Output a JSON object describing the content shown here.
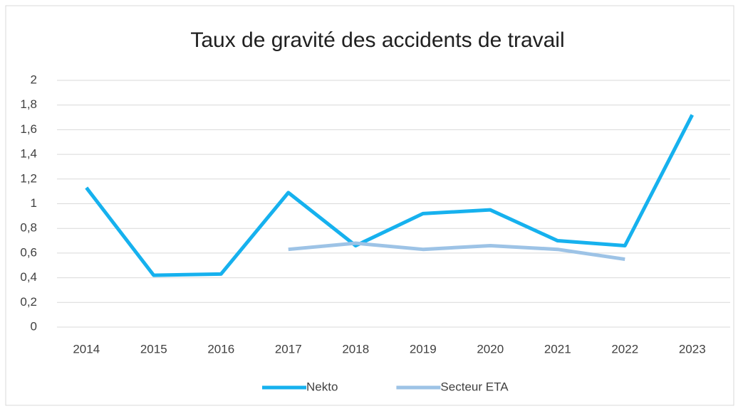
{
  "chart_data": {
    "type": "line",
    "title": "Taux de gravité des accidents de travail",
    "categories": [
      "2014",
      "2015",
      "2016",
      "2017",
      "2018",
      "2019",
      "2020",
      "2021",
      "2022",
      "2023"
    ],
    "series": [
      {
        "name": "Nekto",
        "color": "#16b1ee",
        "values": [
          1.13,
          0.42,
          0.43,
          1.09,
          0.66,
          0.92,
          0.95,
          0.7,
          0.66,
          1.72
        ]
      },
      {
        "name": "Secteur ETA",
        "color": "#9dc3e6",
        "values": [
          null,
          null,
          null,
          0.63,
          0.68,
          0.63,
          0.66,
          0.63,
          0.55,
          null
        ]
      }
    ],
    "ylim": [
      0,
      2
    ],
    "yticks": [
      0,
      {
        "value": 0.2,
        "label": "0,2"
      },
      {
        "value": 0.4,
        "label": "0,4"
      },
      {
        "value": 0.6,
        "label": "0,6"
      },
      {
        "value": 0.8,
        "label": "0,8"
      },
      1,
      {
        "value": 1.2,
        "label": "1,2"
      },
      {
        "value": 1.4,
        "label": "1,4"
      },
      {
        "value": 1.6,
        "label": "1,6"
      },
      {
        "value": 1.8,
        "label": "1,8"
      },
      2
    ],
    "grid": true,
    "legend": "bottom"
  }
}
